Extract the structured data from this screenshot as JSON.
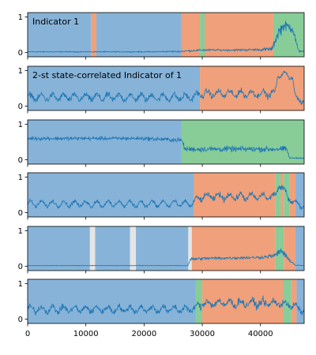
{
  "figure": {
    "background": "#ffffff",
    "colors": {
      "blue": "#87b3d8",
      "orange": "#f0a07a",
      "green": "#88cc98",
      "gray": "#e5e5e5",
      "line": "#1f77b4"
    }
  },
  "chart_data": {
    "type": "line",
    "xlim": [
      0,
      47500
    ],
    "x_ticks": [
      0,
      10000,
      20000,
      30000,
      40000
    ],
    "x_tick_labels": [
      "0",
      "10000",
      "20000",
      "30000",
      "40000"
    ],
    "panels": [
      {
        "title": "Indicator 1",
        "ylim": [
          -0.12,
          1.12
        ],
        "y_ticks": [
          0,
          1
        ],
        "y_tick_labels": [
          "0",
          "1"
        ],
        "states": [
          {
            "start": 0,
            "end": 10900,
            "state": "blue"
          },
          {
            "start": 10900,
            "end": 11800,
            "state": "orange"
          },
          {
            "start": 11800,
            "end": 26400,
            "state": "blue"
          },
          {
            "start": 26400,
            "end": 29600,
            "state": "orange"
          },
          {
            "start": 29600,
            "end": 30400,
            "state": "green"
          },
          {
            "start": 30400,
            "end": 42200,
            "state": "orange"
          },
          {
            "start": 42200,
            "end": 47500,
            "state": "green"
          }
        ],
        "series": {
          "x": [
            0,
            5000,
            10000,
            15000,
            20000,
            26000,
            28000,
            30000,
            35000,
            40000,
            42000,
            43000,
            44000,
            45500,
            46500,
            47500
          ],
          "mean": [
            0.02,
            0.02,
            0.02,
            0.02,
            0.02,
            0.03,
            0.05,
            0.07,
            0.07,
            0.08,
            0.1,
            0.55,
            0.75,
            0.7,
            0.05,
            0.03
          ],
          "noise": [
            0.02,
            0.02,
            0.02,
            0.02,
            0.02,
            0.03,
            0.04,
            0.04,
            0.04,
            0.05,
            0.1,
            0.3,
            0.2,
            0.25,
            0.05,
            0.03
          ]
        }
      },
      {
        "title": "2-st state-correlated Indicator of 1",
        "ylim": [
          -0.12,
          1.12
        ],
        "y_ticks": [
          0,
          1
        ],
        "y_tick_labels": [
          "0",
          "1"
        ],
        "states": [
          {
            "start": 0,
            "end": 29600,
            "state": "blue"
          },
          {
            "start": 29600,
            "end": 47500,
            "state": "orange"
          }
        ],
        "series": {
          "x": [
            0,
            10000,
            20000,
            28000,
            30000,
            35000,
            40000,
            42500,
            43000,
            45500,
            46000,
            47500
          ],
          "mean": [
            0.25,
            0.25,
            0.25,
            0.25,
            0.35,
            0.35,
            0.35,
            0.35,
            0.9,
            0.85,
            0.2,
            0.15
          ],
          "noise": [
            0.12,
            0.12,
            0.12,
            0.12,
            0.12,
            0.12,
            0.12,
            0.12,
            0.05,
            0.08,
            0.1,
            0.08
          ],
          "period": 1900
        }
      },
      {
        "title": "",
        "ylim": [
          -0.12,
          1.12
        ],
        "y_ticks": [
          0,
          1
        ],
        "y_tick_labels": [
          "0",
          "1"
        ],
        "states": [
          {
            "start": 0,
            "end": 26400,
            "state": "blue"
          },
          {
            "start": 26400,
            "end": 47500,
            "state": "green"
          }
        ],
        "series": {
          "x": [
            0,
            10000,
            20000,
            26500,
            27000,
            35000,
            44500,
            45000,
            47500
          ],
          "mean": [
            0.6,
            0.6,
            0.6,
            0.55,
            0.3,
            0.3,
            0.3,
            0.05,
            0.05
          ],
          "noise": [
            0.08,
            0.08,
            0.08,
            0.1,
            0.12,
            0.12,
            0.12,
            0.03,
            0.02
          ]
        }
      },
      {
        "title": "",
        "ylim": [
          -0.12,
          1.12
        ],
        "y_ticks": [
          0,
          1
        ],
        "y_tick_labels": [
          "0",
          "1"
        ],
        "states": [
          {
            "start": 0,
            "end": 28500,
            "state": "blue"
          },
          {
            "start": 28500,
            "end": 42500,
            "state": "orange"
          },
          {
            "start": 42500,
            "end": 43500,
            "state": "green"
          },
          {
            "start": 43500,
            "end": 44000,
            "state": "orange"
          },
          {
            "start": 44000,
            "end": 45000,
            "state": "green"
          },
          {
            "start": 45000,
            "end": 46000,
            "state": "orange"
          },
          {
            "start": 46000,
            "end": 47500,
            "state": "blue"
          }
        ],
        "series": {
          "x": [
            0,
            10000,
            20000,
            28000,
            30000,
            40000,
            42500,
            43200,
            44500,
            46000,
            47500
          ],
          "mean": [
            0.25,
            0.25,
            0.25,
            0.25,
            0.45,
            0.45,
            0.45,
            0.8,
            0.5,
            0.25,
            0.2
          ],
          "noise": [
            0.08,
            0.08,
            0.08,
            0.08,
            0.12,
            0.12,
            0.12,
            0.1,
            0.12,
            0.08,
            0.08
          ],
          "period": 1900
        }
      },
      {
        "title": "",
        "ylim": [
          -0.12,
          1.12
        ],
        "y_ticks": [
          0,
          1
        ],
        "y_tick_labels": [
          "0",
          "1"
        ],
        "states": [
          {
            "start": 0,
            "end": 10700,
            "state": "blue"
          },
          {
            "start": 10700,
            "end": 11600,
            "state": "gray"
          },
          {
            "start": 11600,
            "end": 17600,
            "state": "blue"
          },
          {
            "start": 17600,
            "end": 18600,
            "state": "gray"
          },
          {
            "start": 18600,
            "end": 27600,
            "state": "blue"
          },
          {
            "start": 27600,
            "end": 28200,
            "state": "gray"
          },
          {
            "start": 28200,
            "end": 42500,
            "state": "orange"
          },
          {
            "start": 42500,
            "end": 44000,
            "state": "green"
          },
          {
            "start": 44000,
            "end": 46000,
            "state": "orange"
          },
          {
            "start": 46000,
            "end": 47500,
            "state": "blue"
          }
        ],
        "series": {
          "x": [
            0,
            10000,
            20000,
            27500,
            28000,
            30000,
            40000,
            42500,
            43500,
            44500,
            46000,
            47500
          ],
          "mean": [
            0.02,
            0.02,
            0.02,
            0.02,
            0.2,
            0.22,
            0.25,
            0.3,
            0.45,
            0.25,
            0.03,
            0.02
          ],
          "noise": [
            0.01,
            0.01,
            0.01,
            0.01,
            0.06,
            0.06,
            0.06,
            0.1,
            0.18,
            0.1,
            0.02,
            0.01
          ]
        }
      },
      {
        "title": "",
        "ylim": [
          -0.12,
          1.12
        ],
        "y_ticks": [
          0,
          1
        ],
        "y_tick_labels": [
          "0",
          "1"
        ],
        "states": [
          {
            "start": 0,
            "end": 28900,
            "state": "blue"
          },
          {
            "start": 28900,
            "end": 30000,
            "state": "green"
          },
          {
            "start": 30000,
            "end": 43900,
            "state": "orange"
          },
          {
            "start": 43900,
            "end": 45300,
            "state": "green"
          },
          {
            "start": 45300,
            "end": 46200,
            "state": "orange"
          },
          {
            "start": 46200,
            "end": 47500,
            "state": "blue"
          }
        ],
        "series": {
          "x": [
            0,
            10000,
            20000,
            28500,
            30000,
            40000,
            43500,
            45000,
            46500,
            47500
          ],
          "mean": [
            0.28,
            0.28,
            0.28,
            0.28,
            0.45,
            0.45,
            0.45,
            0.4,
            0.3,
            0.25
          ],
          "noise": [
            0.12,
            0.12,
            0.12,
            0.12,
            0.15,
            0.15,
            0.15,
            0.14,
            0.12,
            0.1
          ],
          "period": 1900
        }
      }
    ]
  }
}
